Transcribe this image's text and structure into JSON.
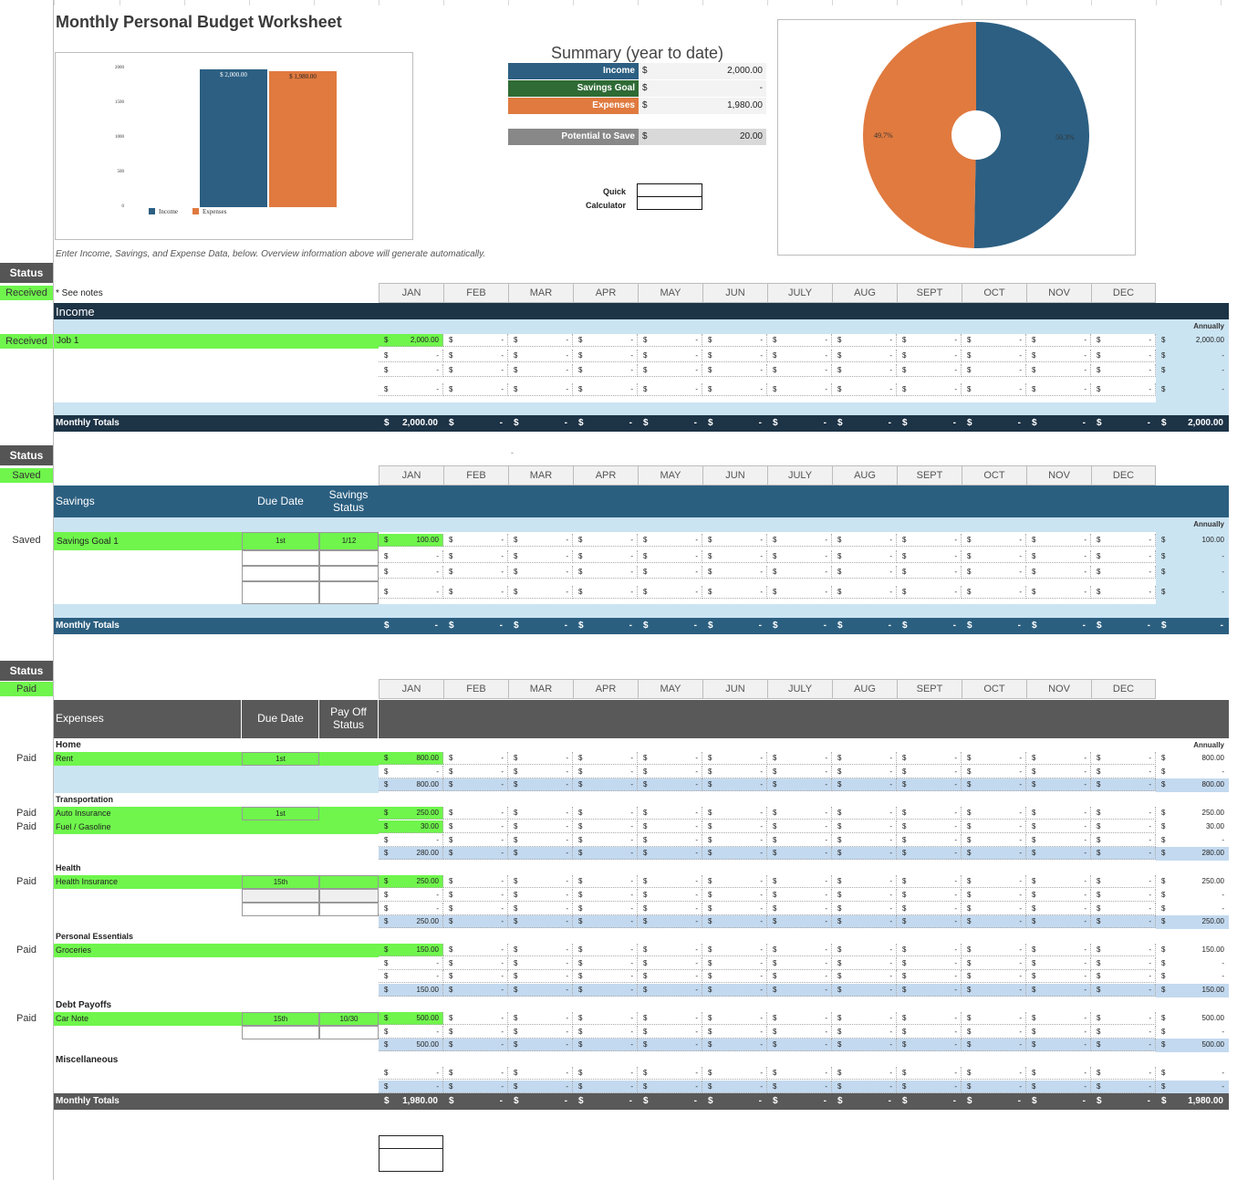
{
  "title": "Monthly Personal Budget Worksheet",
  "colors": {
    "income": "#2c5f82",
    "expenses": "#e07a3f",
    "savings": "#2f6b35",
    "potential": "#888888",
    "income_dark": "#1d3346",
    "savings_band": "#2b5f80",
    "expenses_band": "#595959",
    "light_blue": "#cbe4f2",
    "green": "#6ff54c"
  },
  "bar_chart": {
    "type": "bar",
    "yticks": [
      "2000",
      "1500",
      "1000",
      "500",
      "0"
    ],
    "ylim": [
      0,
      2000
    ],
    "categories": [
      "Income",
      "Expenses"
    ],
    "values": [
      2000,
      1980
    ],
    "labels": [
      "$ 2,000.00",
      "$ 1,980.00"
    ]
  },
  "summary": {
    "title": "Summary (year to date)",
    "rows": [
      {
        "label": "Income",
        "cur": "$",
        "value": "2,000.00"
      },
      {
        "label": "Savings Goal",
        "cur": "$",
        "value": "-"
      },
      {
        "label": "Expenses",
        "cur": "$",
        "value": "1,980.00"
      }
    ],
    "potential": {
      "label": "Potential to Save",
      "cur": "$",
      "value": "20.00"
    },
    "quick_calc": "Quick Calculator"
  },
  "pie_chart": {
    "type": "pie",
    "slices": [
      {
        "name": "Income",
        "value": 50.3,
        "label": "50.3%"
      },
      {
        "name": "Expenses",
        "value": 49.7,
        "label": "49.7%"
      }
    ]
  },
  "chart_data": [
    {
      "type": "bar",
      "categories": [
        "Income",
        "Expenses"
      ],
      "values": [
        2000,
        1980
      ],
      "ylim": [
        0,
        2000
      ],
      "legend": "bottom"
    },
    {
      "type": "pie",
      "categories": [
        "Income",
        "Expenses"
      ],
      "values": [
        50.3,
        49.7
      ]
    }
  ],
  "instruction": "Enter Income, Savings, and Expense Data, below.  Overview information above will generate automatically.",
  "months": [
    "JAN",
    "FEB",
    "MAR",
    "APR",
    "MAY",
    "JUN",
    "JULY",
    "AUG",
    "SEPT",
    "OCT",
    "NOV",
    "DEC"
  ],
  "status_head": "Status",
  "annually": "Annually",
  "monthly_totals": "Monthly Totals",
  "income": {
    "status": "Received",
    "see_notes": "* See notes",
    "section": "Income",
    "row_status": "Received",
    "job": "Job 1",
    "job_jan": "2,000.00",
    "job_annual": "2,000.00",
    "total_jan": "2,000.00",
    "total_annual": "2,000.00"
  },
  "savings": {
    "status": "Saved",
    "section": "Savings",
    "due_date": "Due Date",
    "savings_status": "Savings Status",
    "row_status": "Saved",
    "goal": "Savings Goal 1",
    "goal_due": "1st",
    "goal_status": "1/12",
    "goal_jan": "100.00",
    "goal_annual": "100.00",
    "total_jan": "-",
    "total_annual": "-",
    "mark": "-"
  },
  "expenses": {
    "status": "Paid",
    "section": "Expenses",
    "due_date": "Due Date",
    "payoff_status": "Pay Off Status",
    "home": {
      "cat": "Home",
      "status": "Paid",
      "item": "Rent",
      "due": "1st",
      "jan": "800.00",
      "sub": "800.00"
    },
    "transportation": {
      "cat": "Transportation",
      "s1": "Paid",
      "s2": "Paid",
      "item1": "Auto Insurance",
      "item2": "Fuel / Gasoline",
      "due": "1st",
      "jan1": "250.00",
      "jan2": "30.00",
      "sub": "280.00"
    },
    "health": {
      "cat": "Health",
      "status": "Paid",
      "item": "Health Insurance",
      "due": "15th",
      "jan": "250.00",
      "sub": "250.00"
    },
    "personal": {
      "cat": "Personal Essentials",
      "status": "Paid",
      "item": "Groceries",
      "jan": "150.00",
      "sub": "150.00"
    },
    "debt": {
      "cat": "Debt Payoffs",
      "status": "Paid",
      "item": "Car Note",
      "due": "15th",
      "paystatus": "10/30",
      "jan": "500.00",
      "sub": "500.00"
    },
    "misc": {
      "cat": "Miscellaneous"
    },
    "total_jan": "1,980.00",
    "total_annual": "1,980.00"
  }
}
